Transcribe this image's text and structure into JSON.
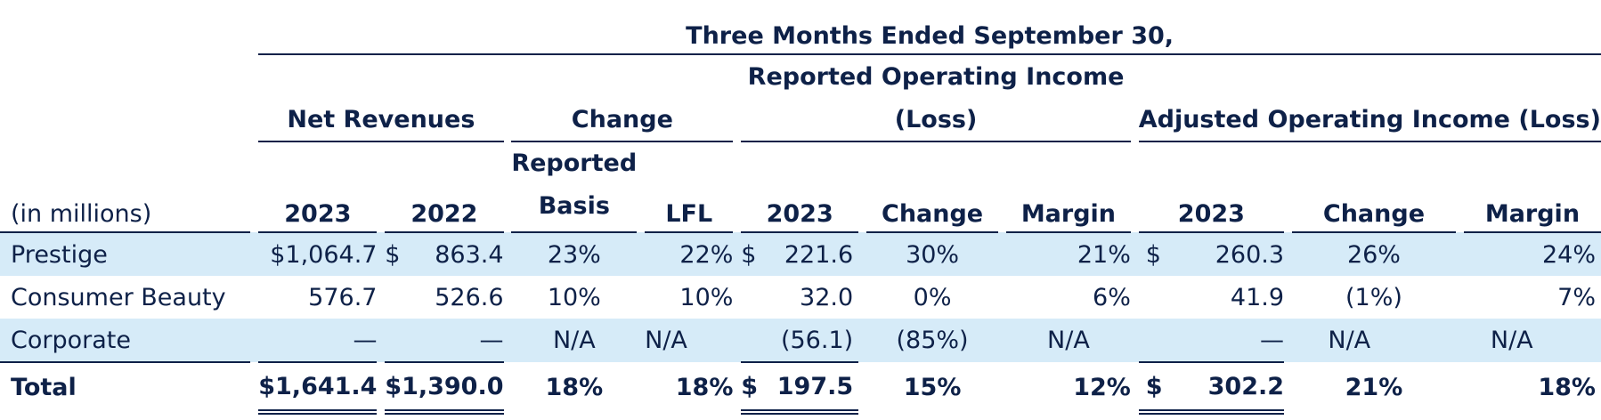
{
  "headers": {
    "period": "Three Months Ended September 30,",
    "net_revenues": "Net Revenues",
    "change": "Change",
    "reported_oi_line1": "Reported Operating Income",
    "reported_oi_line2": "(Loss)",
    "adjusted_oi": "Adjusted Operating Income (Loss)",
    "in_millions": "(in millions)",
    "col_2023": "2023",
    "col_2022": "2022",
    "reported_line1": "Reported",
    "reported_line2": "Basis",
    "lfl": "LFL",
    "change_col": "Change",
    "margin": "Margin"
  },
  "rows": [
    {
      "name": "Prestige",
      "nr2023": "$1,064.7",
      "nr2022_sym": "$",
      "nr2022": "863.4",
      "rep": "23%",
      "lfl": "22%",
      "oi_sym": "$",
      "oi2023": "221.6",
      "oi_chg": "30%",
      "oi_margin": "21%",
      "adj_sym": "$",
      "adj2023": "260.3",
      "adj_chg": "26%",
      "adj_margin": "24%"
    },
    {
      "name": "Consumer Beauty",
      "nr2023": "576.7",
      "nr2022_sym": "",
      "nr2022": "526.6",
      "rep": "10%",
      "lfl": "10%",
      "oi_sym": "",
      "oi2023": "32.0",
      "oi_chg": "0%",
      "oi_margin": "6%",
      "adj_sym": "",
      "adj2023": "41.9",
      "adj_chg": "(1%)",
      "adj_margin": "7%"
    },
    {
      "name": "Corporate",
      "nr2023": "—",
      "nr2022_sym": "",
      "nr2022": "—",
      "rep": "N/A",
      "lfl": "N/A",
      "oi_sym": "",
      "oi2023": "(56.1)",
      "oi_chg": "(85%)",
      "oi_margin": "N/A",
      "adj_sym": "",
      "adj2023": "—",
      "adj_chg": "N/A",
      "adj_margin": "N/A"
    },
    {
      "name": "Total",
      "nr2023": "$1,641.4",
      "nr2022_sym": "",
      "nr2022": "$1,390.0",
      "rep": "18%",
      "lfl": "18%",
      "oi_sym": "$",
      "oi2023": "197.5",
      "oi_chg": "15%",
      "oi_margin": "12%",
      "adj_sym": "$",
      "adj2023": "302.2",
      "adj_chg": "21%",
      "adj_margin": "18%"
    }
  ]
}
